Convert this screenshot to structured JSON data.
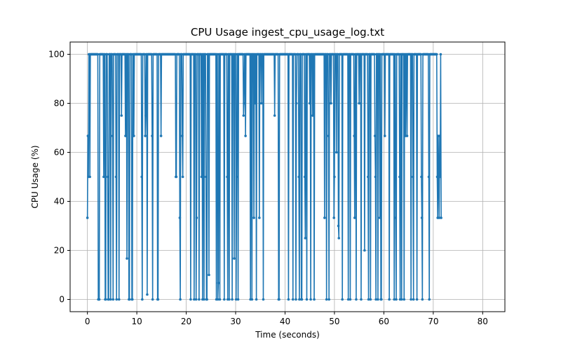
{
  "chart_data": {
    "type": "line",
    "title": "CPU Usage ingest_cpu_usage_log.txt",
    "xlabel": "Time (seconds)",
    "ylabel": "CPU Usage (%)",
    "xlim": [
      -3.5,
      84.5
    ],
    "ylim": [
      -5,
      105
    ],
    "xticks": [
      0,
      10,
      20,
      30,
      40,
      50,
      60,
      70,
      80
    ],
    "yticks": [
      0,
      20,
      40,
      60,
      80,
      100
    ],
    "grid": true,
    "legend": "none",
    "series_color": "#1f77b4",
    "sample_interval_s": 0.1,
    "series": [
      {
        "x_start": 0,
        "x_step": 0.1,
        "values": [
          33.3,
          66.7,
          50,
          100,
          100,
          50,
          100,
          100,
          100,
          100,
          100,
          100,
          100,
          100,
          100,
          100,
          100,
          100,
          100,
          100,
          100,
          100,
          0,
          0,
          0,
          100,
          100,
          100,
          100,
          100,
          100,
          100,
          100,
          50,
          100,
          100,
          0,
          0,
          100,
          100,
          100,
          50,
          0,
          0,
          100,
          100,
          100,
          0,
          100,
          100,
          100,
          66.7,
          0,
          100,
          100,
          100,
          100,
          100,
          50,
          0,
          100,
          100,
          100,
          100,
          0,
          100,
          100,
          100,
          100,
          75,
          100,
          100,
          100,
          100,
          100,
          100,
          100,
          66.7,
          100,
          100,
          16.7,
          100,
          100,
          100,
          0,
          0,
          100,
          100,
          100,
          100,
          0,
          0,
          100,
          100,
          66.7,
          100,
          100,
          100,
          100,
          100,
          100,
          100,
          100,
          100,
          100,
          100,
          100,
          100,
          100,
          100,
          50,
          0,
          100,
          100,
          100,
          100,
          100,
          66.7,
          75,
          100,
          100,
          2,
          100,
          100,
          100,
          100,
          100,
          100,
          100,
          100,
          100,
          66.7,
          0,
          100,
          100,
          100,
          100,
          100,
          100,
          100,
          100,
          100,
          0,
          0,
          100,
          100,
          100,
          100,
          100,
          66.7,
          100,
          100,
          100,
          100,
          100,
          100,
          100,
          100,
          100,
          100,
          100,
          100,
          100,
          100,
          100,
          100,
          100,
          100,
          100,
          100,
          100,
          100,
          100,
          100,
          100,
          100,
          100,
          100,
          100,
          50,
          50,
          100,
          100,
          100,
          100,
          100,
          100,
          33.3,
          0,
          100,
          100,
          100,
          66.7,
          50,
          100,
          100,
          100,
          100,
          100,
          100,
          100,
          100,
          100,
          100,
          100,
          100,
          100,
          100,
          100,
          0,
          100,
          100,
          100,
          100,
          100,
          100,
          0,
          100,
          100,
          100,
          0,
          33.3,
          100,
          100,
          100,
          100,
          0,
          100,
          100,
          100,
          100,
          50,
          100,
          0,
          100,
          100,
          0,
          100,
          100,
          100,
          50,
          0,
          0,
          100,
          100,
          100,
          10,
          100,
          100,
          100,
          100,
          100,
          100,
          100,
          100,
          100,
          100,
          100,
          100,
          100,
          100,
          0,
          100,
          100,
          0,
          6.7,
          100,
          100,
          0,
          100,
          100,
          100,
          100,
          100,
          100,
          100,
          100,
          0,
          100,
          100,
          100,
          100,
          100,
          50,
          0,
          100,
          100,
          0,
          100,
          100,
          100,
          100,
          100,
          0,
          100,
          100,
          100,
          16.7,
          100,
          100,
          100,
          0,
          50,
          100,
          100,
          0,
          100,
          100,
          100,
          100,
          100,
          100,
          100,
          100,
          100,
          100,
          75,
          80,
          100,
          100,
          66.7,
          100,
          100,
          100,
          100,
          100,
          100,
          100,
          100,
          100,
          0,
          100,
          100,
          0,
          100,
          100,
          100,
          33.3,
          100,
          100,
          80,
          100,
          0,
          100,
          100,
          100,
          100,
          100,
          33.3,
          100,
          100,
          100,
          80,
          100,
          100,
          100,
          0,
          100,
          100,
          100,
          100,
          100,
          100,
          100,
          100,
          100,
          100,
          100,
          100,
          100,
          100,
          100,
          100,
          100,
          100,
          100,
          100,
          100,
          100,
          75,
          100,
          100,
          100,
          100,
          100,
          100,
          100,
          0,
          0,
          100,
          100,
          100,
          100,
          100,
          100,
          100,
          100,
          100,
          100,
          100,
          100,
          100,
          100,
          100,
          100,
          100,
          100,
          0,
          100,
          100,
          100,
          100,
          100,
          100,
          100,
          100,
          0,
          100,
          100,
          100,
          100,
          100,
          0,
          80,
          100,
          100,
          100,
          100,
          50,
          0,
          100,
          100,
          100,
          0,
          0,
          100,
          100,
          100,
          100,
          100,
          50,
          25,
          100,
          100,
          0,
          100,
          100,
          100,
          100,
          100,
          80,
          100,
          0,
          100,
          100,
          100,
          75,
          100,
          100,
          0,
          100,
          100,
          100,
          100,
          100,
          100,
          100,
          100,
          100,
          100,
          100,
          100,
          100,
          100,
          100,
          100,
          100,
          100,
          100,
          100,
          33.3,
          100,
          100,
          100,
          0,
          100,
          100,
          100,
          66.7,
          0,
          100,
          100,
          100,
          80,
          100,
          100,
          100,
          100,
          100,
          33.3,
          50,
          100,
          100,
          100,
          60,
          100,
          100,
          100,
          30,
          25,
          100,
          100,
          100,
          100,
          100,
          100,
          0,
          100,
          100,
          100,
          100,
          100,
          100,
          100,
          100,
          100,
          100,
          100,
          0,
          100,
          100,
          100,
          0,
          100,
          100,
          100,
          100,
          100,
          100,
          100,
          66.7,
          33.3,
          100,
          100,
          0,
          100,
          100,
          100,
          100,
          100,
          80,
          100,
          100,
          100,
          0,
          100,
          100,
          100,
          100,
          100,
          100,
          20,
          100,
          100,
          100,
          100,
          100,
          100,
          50,
          0,
          100,
          100,
          100,
          0,
          100,
          100,
          100,
          100,
          100,
          100,
          100,
          100,
          66.7,
          50,
          0,
          100,
          100,
          100,
          0,
          100,
          100,
          100,
          33.3,
          100,
          0,
          0,
          100,
          100,
          100,
          100,
          100,
          100,
          66.7,
          100,
          100,
          100,
          100,
          100,
          100,
          100,
          100,
          0,
          100,
          100,
          100,
          100,
          100,
          100,
          100,
          100,
          100,
          0,
          100,
          100,
          33.3,
          0,
          100,
          100,
          100,
          100,
          100,
          100,
          50,
          0,
          100,
          100,
          0,
          100,
          100,
          100,
          100,
          0,
          100,
          100,
          66.7,
          100,
          100,
          66.7,
          100,
          100,
          100,
          100,
          100,
          100,
          100,
          0,
          100,
          100,
          100,
          50,
          0,
          100,
          100,
          100,
          100,
          100,
          100,
          0,
          100,
          100,
          100,
          100,
          100,
          100,
          100,
          100,
          50,
          33.3,
          0,
          100,
          100,
          100,
          100,
          100,
          100,
          100,
          100,
          100,
          100,
          100,
          100,
          50,
          0,
          100,
          100,
          100,
          100,
          100,
          100,
          100,
          100,
          100,
          100,
          100,
          100,
          100,
          100,
          100,
          50,
          33.3,
          66.7,
          50,
          33.3,
          66.7,
          50,
          100,
          33.3
        ]
      }
    ]
  }
}
